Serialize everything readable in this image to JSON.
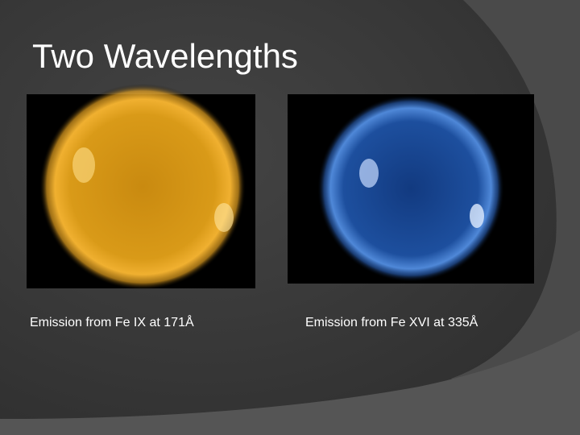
{
  "slide": {
    "title": "Two Wavelengths",
    "captions": [
      "Emission from Fe IX at 171Å",
      "Emission from Fe XVI at 335Å"
    ]
  }
}
